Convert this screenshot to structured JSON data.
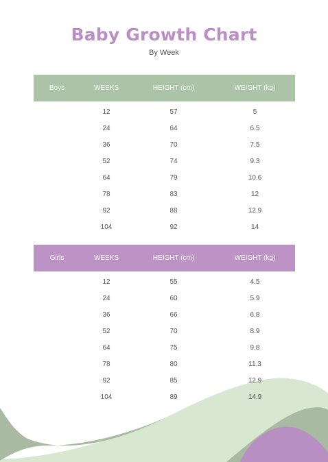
{
  "title": "Baby Growth Chart",
  "subtitle": "By Week",
  "colors": {
    "title": "#b98fc4",
    "boys_header": "#adc3a8",
    "girls_header": "#bd93c5",
    "wave_green_light": "#d2e3cd",
    "wave_green_dark": "#a8bba2",
    "wave_purple": "#b78fc2"
  },
  "boys": {
    "headers": [
      "Boys",
      "WEEKS",
      "HEIGHT (cm)",
      "WEIGHT (kg)"
    ],
    "rows": [
      [
        "12",
        "57",
        "5"
      ],
      [
        "24",
        "64",
        "6.5"
      ],
      [
        "36",
        "70",
        "7.5"
      ],
      [
        "52",
        "74",
        "9.3"
      ],
      [
        "64",
        "79",
        "10.6"
      ],
      [
        "78",
        "83",
        "12"
      ],
      [
        "92",
        "88",
        "12.9"
      ],
      [
        "104",
        "92",
        "14"
      ]
    ]
  },
  "girls": {
    "headers": [
      "Girls",
      "WEEKS",
      "HEIGHT (cm)",
      "WEIGHT (kg)"
    ],
    "rows": [
      [
        "12",
        "55",
        "4.5"
      ],
      [
        "24",
        "60",
        "5.9"
      ],
      [
        "36",
        "66",
        "6.8"
      ],
      [
        "52",
        "70",
        "8.9"
      ],
      [
        "64",
        "75",
        "9.8"
      ],
      [
        "78",
        "80",
        "11.3"
      ],
      [
        "92",
        "85",
        "12.9"
      ],
      [
        "104",
        "89",
        "14.9"
      ]
    ]
  }
}
